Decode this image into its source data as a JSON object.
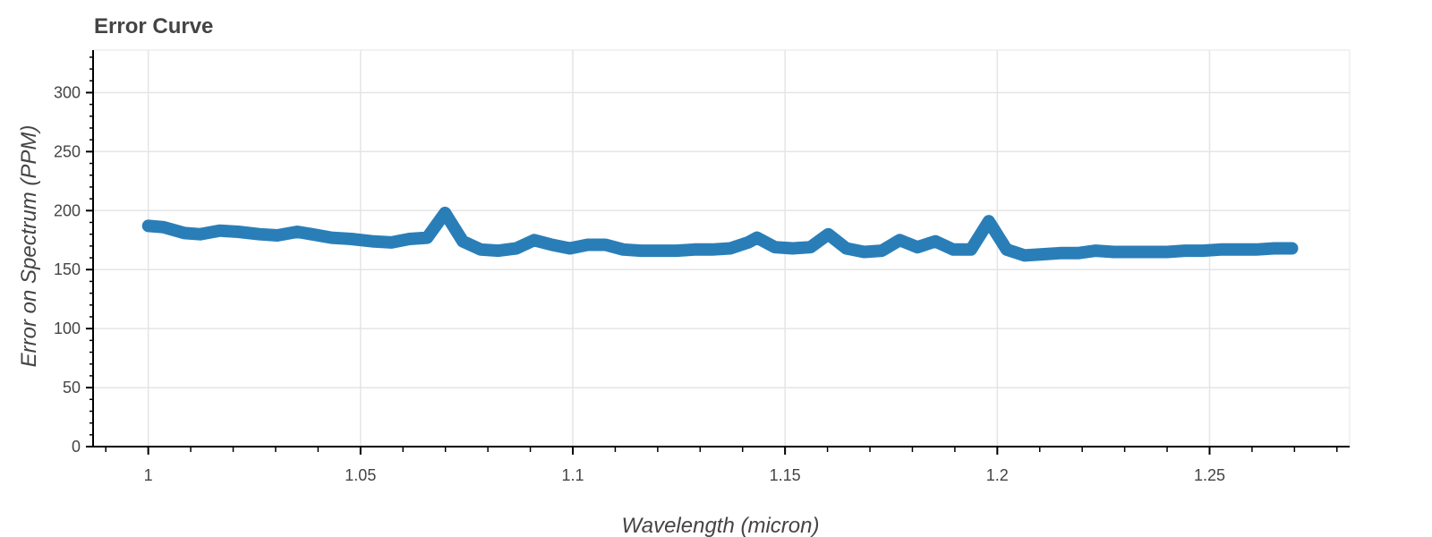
{
  "chart_data": {
    "type": "line",
    "title": "Error Curve",
    "xlabel": "Wavelength (micron)",
    "ylabel": "Error on Spectrum (PPM)",
    "xlim": [
      0.987,
      1.283
    ],
    "ylim": [
      0,
      336
    ],
    "x_ticks": [
      1,
      1.05,
      1.1,
      1.15,
      1.2,
      1.25
    ],
    "x_tick_labels": [
      "1",
      "1.05",
      "1.1",
      "1.15",
      "1.2",
      "1.25"
    ],
    "y_ticks": [
      0,
      50,
      100,
      150,
      200,
      250,
      300
    ],
    "y_tick_labels": [
      "0",
      "50",
      "100",
      "150",
      "200",
      "250",
      "300"
    ],
    "grid": true,
    "series_color": "#1f77b4",
    "series": [
      {
        "x": [
          1.0,
          1.0036,
          1.0085,
          1.0122,
          1.0168,
          1.0212,
          1.0262,
          1.0304,
          1.0351,
          1.0385,
          1.0432,
          1.0478,
          1.0527,
          1.0573,
          1.0615,
          1.0657,
          1.0699,
          1.0741,
          1.0783,
          1.0825,
          1.0867,
          1.0909,
          1.0951,
          1.0993,
          1.1035,
          1.1077,
          1.1119,
          1.1161,
          1.1203,
          1.1245,
          1.1287,
          1.1329,
          1.1371,
          1.1413,
          1.1434,
          1.1476,
          1.1518,
          1.156,
          1.1602,
          1.1644,
          1.1686,
          1.1728,
          1.177,
          1.1812,
          1.1854,
          1.1896,
          1.1938,
          1.198,
          1.2022,
          1.2064,
          1.2106,
          1.2148,
          1.219,
          1.2232,
          1.2274,
          1.2316,
          1.2358,
          1.24,
          1.2442,
          1.2484,
          1.2526,
          1.2568,
          1.261,
          1.2652,
          1.2694
        ],
        "y": [
          187,
          186,
          181,
          180,
          183,
          182,
          180,
          179,
          182,
          180,
          177,
          176,
          174,
          173,
          176,
          177,
          198,
          174,
          167,
          166,
          168,
          175,
          171,
          168,
          171,
          171,
          167,
          166,
          166,
          166,
          167,
          167,
          168,
          173,
          177,
          169,
          168,
          169,
          180,
          168,
          165,
          166,
          175,
          169,
          174,
          167,
          167,
          191,
          167,
          162,
          163,
          164,
          164,
          166,
          165,
          165,
          165,
          165,
          166,
          166,
          167,
          167,
          167,
          168,
          168
        ]
      }
    ]
  }
}
